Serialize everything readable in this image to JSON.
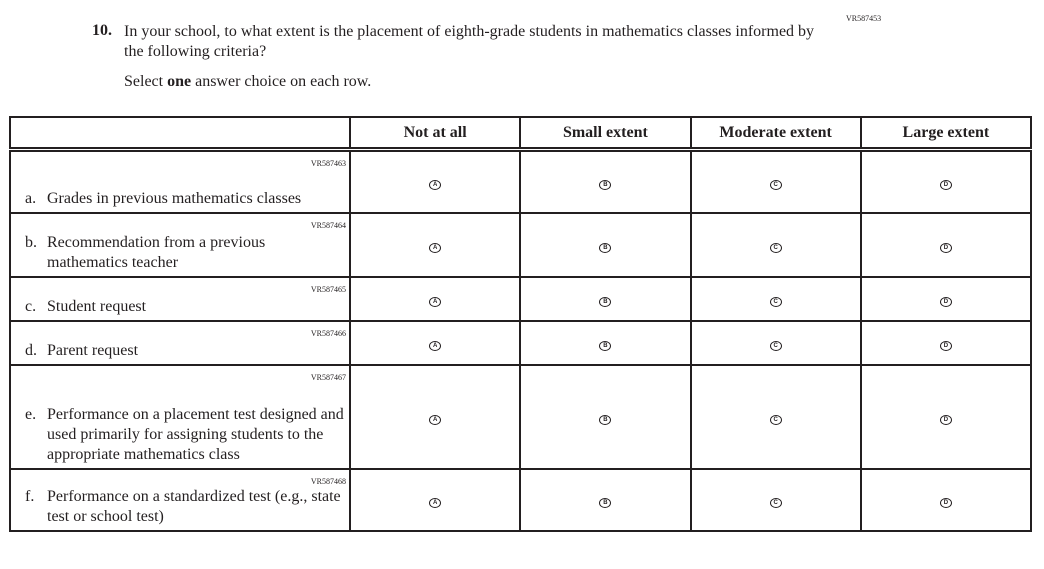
{
  "question": {
    "id": "VR587453",
    "number": "10.",
    "text": "In your school, to what extent is the placement of eighth-grade students in mathematics classes informed by the following criteria?",
    "instruction_pre": "Select ",
    "instruction_bold": "one",
    "instruction_post": " answer choice on each row."
  },
  "columns": [
    "Not at all",
    "Small extent",
    "Moderate extent",
    "Large extent"
  ],
  "bubbles": [
    "A",
    "B",
    "C",
    "D"
  ],
  "rows": [
    {
      "id": "VR587463",
      "letter": "a.",
      "text": "Grades in previous mathematics classes"
    },
    {
      "id": "VR587464",
      "letter": "b.",
      "text": "Recommendation from a previous mathematics teacher"
    },
    {
      "id": "VR587465",
      "letter": "c.",
      "text": "Student request"
    },
    {
      "id": "VR587466",
      "letter": "d.",
      "text": "Parent request"
    },
    {
      "id": "VR587467",
      "letter": "e.",
      "text": "Performance on a placement test designed and used primarily for assigning students to the appropriate mathematics class"
    },
    {
      "id": "VR587468",
      "letter": "f.",
      "text": "Performance on a standardized test (e.g., state test or school test)"
    }
  ]
}
